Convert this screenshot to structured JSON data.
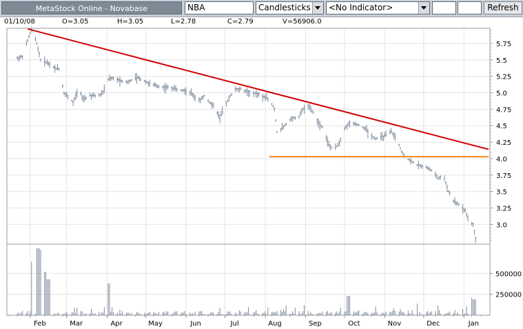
{
  "toolbar": {
    "title": "MetaStock Online - Novabase",
    "symbol": "NBA",
    "chart_type": "Candlesticks",
    "indicator": "<No Indicator>",
    "param1": "",
    "param2": "",
    "refresh_label": "Refresh"
  },
  "quote": {
    "date": "01/10/08",
    "open": "O=3.05",
    "high": "H=3.05",
    "low": "L=2.78",
    "close": "C=2.79",
    "volume": "V=56906.0"
  },
  "colors": {
    "toolbar_bg": "#c8d0d8",
    "title_bg": "#7e8a96",
    "price_bars": "#7d8a9a",
    "trendline": "#d00000",
    "support_line": "#ff8c1a",
    "grid": "#e4e4e4"
  },
  "chart_data": {
    "type": "candlestick",
    "x_ticks": [
      "Feb",
      "Mar",
      "Apr",
      "May",
      "Jun",
      "Jul",
      "Aug",
      "Sep",
      "Oct",
      "Nov",
      "Dec",
      "Jan"
    ],
    "price_axis": {
      "ticks": [
        "5.75",
        "5.5",
        "5.25",
        "5.0",
        "4.75",
        "4.5",
        "4.25",
        "4.0",
        "3.75",
        "3.5",
        "3.25",
        "3.0"
      ],
      "range": [
        2.7,
        5.98
      ]
    },
    "volume_axis": {
      "ticks": [
        "500000",
        "250000"
      ],
      "range": [
        0,
        850000
      ]
    },
    "grid": true,
    "price_path": [
      [
        "2007-01-22",
        5.52
      ],
      [
        "2007-01-26",
        5.55
      ],
      [
        "2007-01-31",
        5.85
      ],
      [
        "2007-02-02",
        5.95
      ],
      [
        "2007-02-06",
        5.75
      ],
      [
        "2007-02-09",
        5.5
      ],
      [
        "2007-02-14",
        5.45
      ],
      [
        "2007-02-19",
        5.38
      ],
      [
        "2007-02-23",
        5.35
      ],
      [
        "2007-02-27",
        5.0
      ],
      [
        "2007-03-02",
        4.95
      ],
      [
        "2007-03-06",
        4.85
      ],
      [
        "2007-03-10",
        5.05
      ],
      [
        "2007-03-14",
        4.9
      ],
      [
        "2007-03-19",
        4.95
      ],
      [
        "2007-03-23",
        4.95
      ],
      [
        "2007-03-28",
        4.97
      ],
      [
        "2007-04-02",
        5.2
      ],
      [
        "2007-04-06",
        5.22
      ],
      [
        "2007-04-11",
        5.18
      ],
      [
        "2007-04-16",
        5.15
      ],
      [
        "2007-04-21",
        5.2
      ],
      [
        "2007-04-25",
        5.22
      ],
      [
        "2007-04-30",
        5.18
      ],
      [
        "2007-05-05",
        5.12
      ],
      [
        "2007-05-10",
        5.1
      ],
      [
        "2007-05-15",
        5.08
      ],
      [
        "2007-05-21",
        5.07
      ],
      [
        "2007-05-25",
        5.05
      ],
      [
        "2007-05-30",
        5.03
      ],
      [
        "2007-06-04",
        5.0
      ],
      [
        "2007-06-08",
        4.92
      ],
      [
        "2007-06-12",
        4.88
      ],
      [
        "2007-06-15",
        4.95
      ],
      [
        "2007-06-19",
        4.85
      ],
      [
        "2007-06-23",
        4.78
      ],
      [
        "2007-06-27",
        4.6
      ],
      [
        "2007-07-01",
        4.8
      ],
      [
        "2007-07-05",
        4.95
      ],
      [
        "2007-07-09",
        5.05
      ],
      [
        "2007-07-13",
        5.05
      ],
      [
        "2007-07-18",
        5.02
      ],
      [
        "2007-07-22",
        5.0
      ],
      [
        "2007-07-27",
        4.97
      ],
      [
        "2007-07-31",
        4.93
      ],
      [
        "2007-08-04",
        4.9
      ],
      [
        "2007-08-08",
        4.75
      ],
      [
        "2007-08-10",
        4.4
      ],
      [
        "2007-08-14",
        4.45
      ],
      [
        "2007-08-18",
        4.55
      ],
      [
        "2007-08-22",
        4.62
      ],
      [
        "2007-08-26",
        4.6
      ],
      [
        "2007-08-30",
        4.75
      ],
      [
        "2007-09-03",
        4.8
      ],
      [
        "2007-09-07",
        4.7
      ],
      [
        "2007-09-11",
        4.55
      ],
      [
        "2007-09-15",
        4.45
      ],
      [
        "2007-09-19",
        4.2
      ],
      [
        "2007-09-23",
        4.12
      ],
      [
        "2007-09-27",
        4.25
      ],
      [
        "2007-10-01",
        4.45
      ],
      [
        "2007-10-05",
        4.55
      ],
      [
        "2007-10-09",
        4.52
      ],
      [
        "2007-10-13",
        4.5
      ],
      [
        "2007-10-17",
        4.45
      ],
      [
        "2007-10-21",
        4.35
      ],
      [
        "2007-10-25",
        4.3
      ],
      [
        "2007-10-29",
        4.32
      ],
      [
        "2007-11-02",
        4.35
      ],
      [
        "2007-11-06",
        4.4
      ],
      [
        "2007-11-10",
        4.3
      ],
      [
        "2007-11-14",
        4.1
      ],
      [
        "2007-11-18",
        4.0
      ],
      [
        "2007-11-22",
        3.95
      ],
      [
        "2007-11-26",
        3.9
      ],
      [
        "2007-11-30",
        3.88
      ],
      [
        "2007-12-04",
        3.85
      ],
      [
        "2007-12-08",
        3.8
      ],
      [
        "2007-12-12",
        3.7
      ],
      [
        "2007-12-16",
        3.75
      ],
      [
        "2007-12-20",
        3.5
      ],
      [
        "2007-12-24",
        3.35
      ],
      [
        "2007-12-28",
        3.3
      ],
      [
        "2008-01-02",
        3.2
      ],
      [
        "2008-01-05",
        3.05
      ],
      [
        "2008-01-08",
        3.0
      ],
      [
        "2008-01-10",
        2.79
      ]
    ],
    "trendline": {
      "from": [
        "2007-01-30",
        5.97
      ],
      "to": [
        "2008-01-20",
        4.14
      ]
    },
    "support_line": {
      "from": [
        "2007-08-04",
        4.03
      ],
      "to": [
        "2008-01-20",
        4.03
      ]
    },
    "volume_peaks": [
      [
        "2007-02-03",
        640000
      ],
      [
        "2007-02-07",
        800000
      ],
      [
        "2007-02-10",
        780000
      ],
      [
        "2007-02-13",
        520000
      ],
      [
        "2007-02-15",
        430000
      ],
      [
        "2007-04-02",
        380000
      ],
      [
        "2007-10-04",
        230000
      ],
      [
        "2008-01-06",
        210000
      ],
      [
        "2008-01-09",
        190000
      ]
    ]
  }
}
